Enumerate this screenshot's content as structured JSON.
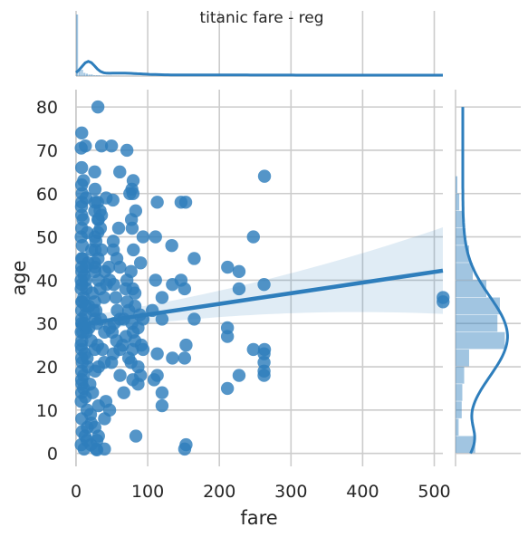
{
  "chart_data": {
    "type": "scatter",
    "title": "titanic fare - reg",
    "xlabel": "fare",
    "ylabel": "age",
    "xlim": [
      0,
      512
    ],
    "ylim": [
      -3,
      84
    ],
    "xticks": [
      0,
      100,
      200,
      300,
      400,
      500
    ],
    "yticks": [
      0,
      10,
      20,
      30,
      40,
      50,
      60,
      70,
      80
    ],
    "grid": true,
    "color": "#2e7ebc",
    "regression": {
      "x": [
        0,
        512
      ],
      "y": [
        29.6,
        42.2
      ],
      "ci_upper": [
        31.4,
        52.2
      ],
      "ci_lower": [
        27.8,
        32.2
      ]
    },
    "points": [
      [
        30.5,
        80
      ],
      [
        7.9,
        74
      ],
      [
        13,
        71
      ],
      [
        7.2,
        70.5
      ],
      [
        35.5,
        71
      ],
      [
        49.5,
        71
      ],
      [
        71,
        70
      ],
      [
        26,
        65
      ],
      [
        7.8,
        66
      ],
      [
        61,
        65
      ],
      [
        79.7,
        63
      ],
      [
        10.5,
        63
      ],
      [
        77.9,
        61
      ],
      [
        26.5,
        61
      ],
      [
        75,
        60
      ],
      [
        79.5,
        60
      ],
      [
        153,
        58
      ],
      [
        146.5,
        58
      ],
      [
        113.3,
        58
      ],
      [
        263,
        64
      ],
      [
        26.5,
        58
      ],
      [
        30,
        58
      ],
      [
        42,
        59
      ],
      [
        51.5,
        58.5
      ],
      [
        33.5,
        56
      ],
      [
        26,
        56
      ],
      [
        83.2,
        56
      ],
      [
        35.5,
        55
      ],
      [
        30.7,
        54
      ],
      [
        77.3,
        54
      ],
      [
        59.4,
        52
      ],
      [
        78.3,
        52
      ],
      [
        247.5,
        50
      ],
      [
        93.5,
        50
      ],
      [
        110.9,
        50
      ],
      [
        133.6,
        48
      ],
      [
        26.3,
        50
      ],
      [
        52,
        47
      ],
      [
        80,
        47
      ],
      [
        164.9,
        45
      ],
      [
        227.5,
        42
      ],
      [
        211.5,
        43
      ],
      [
        30.5,
        51
      ],
      [
        51.9,
        49
      ],
      [
        56.9,
        45
      ],
      [
        25.9,
        44
      ],
      [
        90,
        44
      ],
      [
        76.7,
        42
      ],
      [
        61.2,
        43
      ],
      [
        13.8,
        43
      ],
      [
        146.5,
        40
      ],
      [
        151.5,
        38
      ],
      [
        110.9,
        40
      ],
      [
        120,
        36
      ],
      [
        134.5,
        39
      ],
      [
        227.5,
        38
      ],
      [
        262.4,
        39
      ],
      [
        79.2,
        38
      ],
      [
        71,
        40
      ],
      [
        52.5,
        39
      ],
      [
        39,
        36
      ],
      [
        31.3,
        40
      ],
      [
        512.3,
        35
      ],
      [
        512.3,
        36
      ],
      [
        164.9,
        31
      ],
      [
        211.3,
        29
      ],
      [
        120,
        31
      ],
      [
        106.4,
        33
      ],
      [
        93.5,
        31
      ],
      [
        82.2,
        34
      ],
      [
        61.4,
        31
      ],
      [
        211.3,
        27
      ],
      [
        153.5,
        25
      ],
      [
        263,
        24
      ],
      [
        247.5,
        24
      ],
      [
        262.4,
        23
      ],
      [
        262.4,
        21
      ],
      [
        262.4,
        19
      ],
      [
        262.4,
        18
      ],
      [
        227.5,
        18
      ],
      [
        211.3,
        15
      ],
      [
        151.5,
        22
      ],
      [
        113.3,
        23
      ],
      [
        134.5,
        22
      ],
      [
        93.5,
        24
      ],
      [
        82.2,
        26
      ],
      [
        73.5,
        22
      ],
      [
        76.7,
        21
      ],
      [
        86.5,
        20
      ],
      [
        69.5,
        27
      ],
      [
        113.3,
        18
      ],
      [
        108.9,
        17
      ],
      [
        90,
        18
      ],
      [
        79.2,
        17
      ],
      [
        86.5,
        16
      ],
      [
        61.4,
        18
      ],
      [
        120,
        14
      ],
      [
        120,
        11
      ],
      [
        66.6,
        14
      ],
      [
        153.5,
        2
      ],
      [
        151.6,
        1
      ],
      [
        83.5,
        4
      ],
      [
        39.7,
        1
      ],
      [
        31.3,
        4
      ],
      [
        27.9,
        1
      ],
      [
        20.6,
        2
      ],
      [
        15.2,
        3
      ],
      [
        11.1,
        1
      ],
      [
        29,
        0.8
      ],
      [
        7.2,
        2
      ],
      [
        46.9,
        10
      ],
      [
        39.7,
        8
      ],
      [
        31.3,
        11
      ],
      [
        21.1,
        7
      ],
      [
        29.1,
        3
      ],
      [
        26.3,
        6
      ],
      [
        41.6,
        12
      ],
      [
        15.3,
        10
      ],
      [
        7.2,
        25
      ],
      [
        7.9,
        22
      ],
      [
        8.1,
        26
      ],
      [
        7.8,
        19
      ],
      [
        7.9,
        30
      ],
      [
        13,
        32
      ],
      [
        7.9,
        35
      ],
      [
        8.7,
        21
      ],
      [
        7.2,
        28
      ],
      [
        7.9,
        45
      ],
      [
        10.5,
        18
      ],
      [
        13,
        29
      ],
      [
        26,
        24
      ],
      [
        26,
        35
      ],
      [
        15.5,
        22
      ],
      [
        7.8,
        17
      ],
      [
        9.5,
        28
      ],
      [
        8.1,
        39
      ],
      [
        7.8,
        33
      ],
      [
        13.9,
        40
      ],
      [
        7.2,
        50
      ],
      [
        7.9,
        43
      ],
      [
        8.1,
        16
      ],
      [
        7.2,
        38
      ],
      [
        7.9,
        24
      ],
      [
        26.6,
        31
      ],
      [
        26.3,
        42
      ],
      [
        16.1,
        20
      ],
      [
        10.5,
        36
      ],
      [
        21,
        26
      ],
      [
        7.9,
        31
      ],
      [
        8.7,
        48
      ],
      [
        7.8,
        52
      ],
      [
        9.2,
        45
      ],
      [
        12.3,
        23
      ],
      [
        24.2,
        33
      ],
      [
        14.5,
        28
      ],
      [
        14.4,
        38
      ],
      [
        7.8,
        14
      ],
      [
        8.4,
        60
      ],
      [
        7.2,
        40
      ],
      [
        9,
        35
      ],
      [
        26.6,
        47
      ],
      [
        29.1,
        30
      ],
      [
        7.9,
        55
      ],
      [
        7.8,
        62
      ],
      [
        8.05,
        42
      ],
      [
        11.5,
        30
      ],
      [
        13.5,
        34
      ],
      [
        18,
        29
      ],
      [
        36.8,
        24
      ],
      [
        39.7,
        28
      ],
      [
        34.4,
        31
      ],
      [
        31.4,
        20
      ],
      [
        39.4,
        21
      ],
      [
        30.1,
        25
      ],
      [
        26.6,
        19
      ],
      [
        27.7,
        33
      ],
      [
        33.5,
        38
      ],
      [
        46.9,
        29
      ],
      [
        52,
        23
      ],
      [
        56.5,
        26
      ],
      [
        55.4,
        36
      ],
      [
        57.5,
        33
      ],
      [
        53.1,
        30
      ],
      [
        50.5,
        28
      ],
      [
        66.6,
        31
      ],
      [
        65,
        25
      ],
      [
        61.2,
        24
      ],
      [
        49.5,
        21
      ],
      [
        71.3,
        35
      ],
      [
        77.9,
        30
      ],
      [
        79.7,
        28
      ],
      [
        82.2,
        37
      ],
      [
        89.1,
        32
      ],
      [
        86.5,
        29
      ],
      [
        91.1,
        25
      ],
      [
        73.5,
        33
      ],
      [
        69.3,
        38
      ],
      [
        78.8,
        24
      ],
      [
        26.6,
        43
      ],
      [
        30.7,
        45
      ],
      [
        35.5,
        47
      ],
      [
        34,
        52
      ],
      [
        27.7,
        49
      ],
      [
        31,
        54
      ],
      [
        40.1,
        42
      ],
      [
        45.5,
        43
      ],
      [
        42.4,
        39
      ],
      [
        46.9,
        40
      ],
      [
        7.9,
        8
      ],
      [
        8.5,
        5
      ],
      [
        7.2,
        12
      ],
      [
        10.5,
        15
      ],
      [
        13,
        13
      ],
      [
        15.7,
        6
      ],
      [
        20.2,
        9
      ],
      [
        23,
        14
      ],
      [
        19.3,
        16
      ],
      [
        12.5,
        4
      ],
      [
        8.0,
        58
      ],
      [
        9.8,
        54
      ],
      [
        7.6,
        57
      ],
      [
        13.8,
        59
      ],
      [
        15.5,
        51
      ],
      [
        21.7,
        47
      ],
      [
        16.7,
        44
      ],
      [
        11.1,
        41
      ],
      [
        22.4,
        37
      ],
      [
        17.8,
        34
      ]
    ],
    "histogram_fare": {
      "bin_width": 10.25,
      "heights": [
        0.78,
        0.09,
        0.08,
        0.04,
        0.03,
        0.02,
        0.02,
        0.01,
        0.01,
        0.01,
        0.005,
        0.005,
        0.004,
        0.003,
        0.003,
        0.002,
        0.002,
        0.002,
        0.001,
        0.001,
        0.001,
        0.001,
        0.001,
        0.001,
        0.001,
        0.0008,
        0.0006,
        0.0004,
        0.0003,
        0.0002
      ]
    },
    "histogram_age": {
      "bins": [
        0,
        4,
        8,
        12,
        16,
        20,
        24,
        28,
        32,
        36,
        40,
        44,
        48,
        52,
        56,
        60
      ],
      "heights": [
        0.32,
        0.05,
        0.1,
        0.11,
        0.14,
        0.22,
        0.8,
        0.68,
        0.72,
        0.5,
        0.28,
        0.22,
        0.16,
        0.11,
        0.06,
        0.03
      ]
    }
  }
}
